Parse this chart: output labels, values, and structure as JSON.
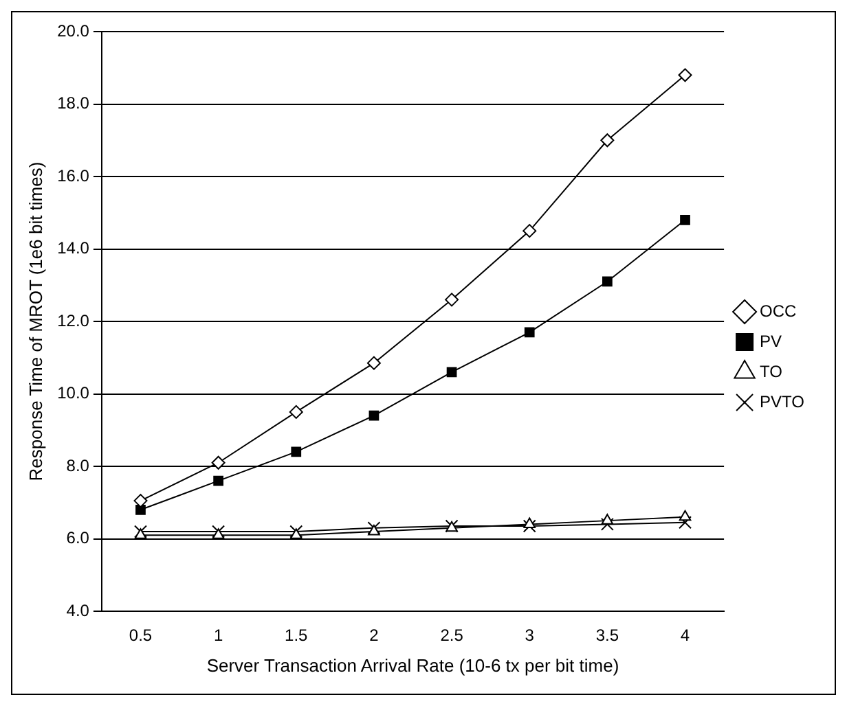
{
  "chart_data": {
    "type": "line",
    "xlabel": "Server Transaction Arrival Rate (10-6 tx per bit time)",
    "ylabel": "Response Time of MROT (1e6 bit times)",
    "categories": [
      "0.5",
      "1",
      "1.5",
      "2",
      "2.5",
      "3",
      "3.5",
      "4"
    ],
    "series": [
      {
        "name": "OCC",
        "color": "#000000",
        "marker": "diamond",
        "values": [
          7.05,
          8.1,
          9.5,
          10.85,
          12.6,
          14.5,
          17.0,
          18.8
        ]
      },
      {
        "name": "PV",
        "color": "#000000",
        "marker": "square",
        "values": [
          6.8,
          7.6,
          8.4,
          9.4,
          10.6,
          11.7,
          13.1,
          14.8
        ]
      },
      {
        "name": "TO",
        "color": "#000000",
        "marker": "triangle",
        "values": [
          6.1,
          6.1,
          6.1,
          6.2,
          6.3,
          6.4,
          6.5,
          6.6
        ]
      },
      {
        "name": "PVTO",
        "color": "#000000",
        "marker": "cross",
        "values": [
          6.2,
          6.2,
          6.2,
          6.3,
          6.35,
          6.35,
          6.4,
          6.45
        ]
      }
    ],
    "ylim": [
      4,
      20
    ],
    "yticks": [
      {
        "value": 4,
        "label": "4.0"
      },
      {
        "value": 6,
        "label": "6.0"
      },
      {
        "value": 8,
        "label": "8.0"
      },
      {
        "value": 10,
        "label": "10.0"
      },
      {
        "value": 12,
        "label": "12.0"
      },
      {
        "value": 14,
        "label": "14.0"
      },
      {
        "value": 16,
        "label": "16.0"
      },
      {
        "value": 18,
        "label": "18.0"
      },
      {
        "value": 20,
        "label": "20.0"
      }
    ],
    "grid": "y",
    "legend": "right"
  }
}
